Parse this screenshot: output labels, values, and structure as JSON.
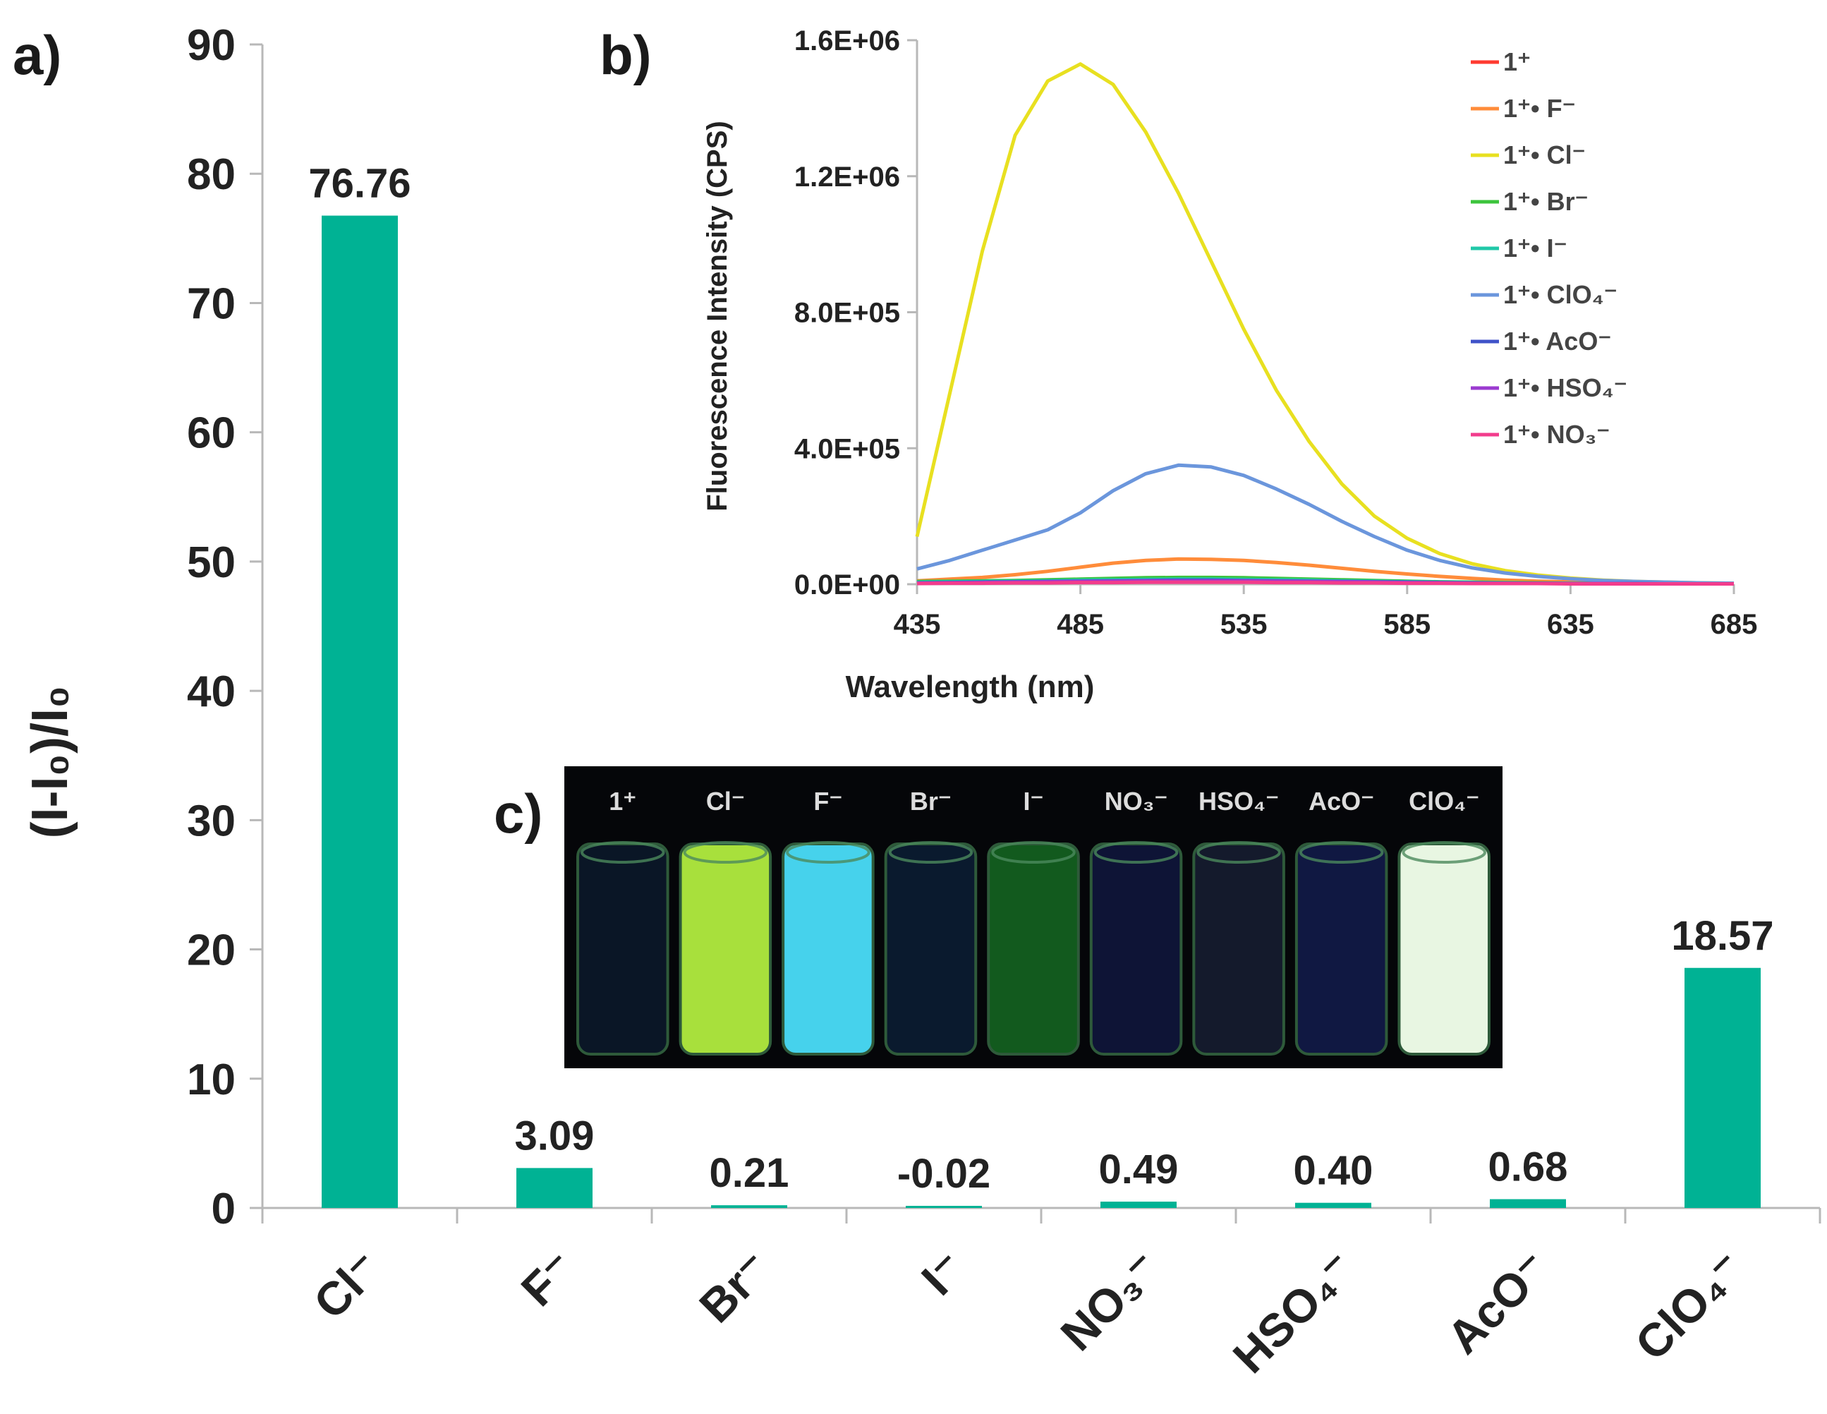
{
  "panels": {
    "a": "a)",
    "b": "b)",
    "c": "c)"
  },
  "chart_data": [
    {
      "panel": "a",
      "type": "bar",
      "categories": [
        "Cl⁻",
        "F⁻",
        "Br⁻",
        "I⁻",
        "NO₃⁻",
        "HSO₄⁻",
        "AcO⁻",
        "ClO₄⁻"
      ],
      "values": [
        76.76,
        3.09,
        0.21,
        -0.02,
        0.49,
        0.4,
        0.68,
        18.57
      ],
      "value_labels": [
        "76.76",
        "3.09",
        "0.21",
        "-0.02",
        "0.49",
        "0.40",
        "0.68",
        "18.57"
      ],
      "ylabel": "(I-I₀)/I₀",
      "xlabel": "",
      "title": "",
      "ylim": [
        0,
        90
      ],
      "yticks": [
        0,
        10,
        20,
        30,
        40,
        50,
        60,
        70,
        80,
        90
      ],
      "bar_color": "#00b294",
      "grid": false
    },
    {
      "panel": "b",
      "type": "line",
      "title": "",
      "xlabel": "Wavelength (nm)",
      "ylabel": "Fluorescence Intensity (CPS)",
      "xlim": [
        435,
        685
      ],
      "ylim": [
        0,
        1600000
      ],
      "xticks": [
        435,
        485,
        535,
        585,
        635,
        685
      ],
      "yticks": [
        0,
        400000,
        800000,
        1200000,
        1600000
      ],
      "ytick_labels": [
        "0.0E+00",
        "4.0E+05",
        "8.0E+05",
        "1.2E+06",
        "1.6E+06"
      ],
      "legend_position": "right",
      "grid": false,
      "x": [
        435,
        445,
        455,
        465,
        475,
        485,
        495,
        505,
        515,
        525,
        535,
        545,
        555,
        565,
        575,
        585,
        595,
        605,
        615,
        625,
        635,
        645,
        655,
        665,
        675,
        685
      ],
      "series": [
        {
          "name": "1⁺",
          "color": "#ff3b30",
          "values": [
            5000,
            5000,
            6000,
            6000,
            7000,
            7000,
            8000,
            8000,
            8000,
            8000,
            8000,
            7000,
            7000,
            6000,
            6000,
            5000,
            5000,
            4000,
            4000,
            3000,
            3000,
            2000,
            2000,
            2000,
            1000,
            1000
          ]
        },
        {
          "name": "1⁺• F⁻",
          "color": "#ff8c3a",
          "values": [
            10000,
            15000,
            20000,
            28000,
            38000,
            50000,
            62000,
            70000,
            74000,
            73000,
            70000,
            64000,
            56000,
            47000,
            38000,
            30000,
            23000,
            17000,
            12000,
            9000,
            7000,
            5000,
            4000,
            3000,
            2500,
            2000
          ]
        },
        {
          "name": "1⁺• Cl⁻",
          "color": "#e8e020",
          "values": [
            140000,
            560000,
            980000,
            1320000,
            1480000,
            1530000,
            1470000,
            1330000,
            1150000,
            950000,
            750000,
            570000,
            420000,
            295000,
            200000,
            135000,
            90000,
            60000,
            40000,
            27000,
            18000,
            12000,
            8000,
            6000,
            4000,
            3000
          ]
        },
        {
          "name": "1⁺• Br⁻",
          "color": "#3cc43c",
          "values": [
            8000,
            9000,
            10000,
            11000,
            13000,
            15000,
            17000,
            19000,
            20000,
            20000,
            19000,
            17000,
            15000,
            13000,
            11000,
            9000,
            7000,
            6000,
            5000,
            4000,
            3000,
            3000,
            2000,
            2000,
            2000,
            1000
          ]
        },
        {
          "name": "1⁺• I⁻",
          "color": "#20c8a8",
          "values": [
            6000,
            7000,
            8000,
            9000,
            10000,
            12000,
            13000,
            14000,
            15000,
            15000,
            14000,
            13000,
            12000,
            10000,
            9000,
            7000,
            6000,
            5000,
            4000,
            3000,
            3000,
            2000,
            2000,
            1000,
            1000,
            1000
          ]
        },
        {
          "name": "1⁺• ClO₄⁻",
          "color": "#6b96dc",
          "values": [
            45000,
            70000,
            100000,
            130000,
            160000,
            210000,
            275000,
            325000,
            350000,
            345000,
            320000,
            280000,
            235000,
            185000,
            140000,
            100000,
            70000,
            48000,
            33000,
            23000,
            16000,
            11000,
            8000,
            6000,
            4000,
            3000
          ]
        },
        {
          "name": "1⁺• AcO⁻",
          "color": "#3f52c8",
          "values": [
            4000,
            5000,
            6000,
            7000,
            8000,
            9000,
            10000,
            11000,
            12000,
            12000,
            11000,
            10000,
            9000,
            8000,
            7000,
            6000,
            5000,
            4000,
            3000,
            3000,
            2000,
            2000,
            2000,
            1000,
            1000,
            1000
          ]
        },
        {
          "name": "1⁺• HSO₄⁻",
          "color": "#9b3bd0",
          "values": [
            3000,
            4000,
            5000,
            6000,
            7000,
            8000,
            9000,
            10000,
            10000,
            10000,
            10000,
            9000,
            8000,
            7000,
            6000,
            5000,
            4000,
            3000,
            3000,
            2000,
            2000,
            2000,
            1000,
            1000,
            1000,
            1000
          ]
        },
        {
          "name": "1⁺• NO₃⁻",
          "color": "#f23c8c",
          "values": [
            2000,
            3000,
            3000,
            4000,
            4000,
            5000,
            5000,
            6000,
            6000,
            6000,
            6000,
            5000,
            5000,
            4000,
            4000,
            3000,
            3000,
            2000,
            2000,
            2000,
            1000,
            1000,
            1000,
            1000,
            1000,
            1000
          ]
        }
      ]
    }
  ],
  "photo": {
    "labels": [
      "1⁺",
      "Cl⁻",
      "F⁻",
      "Br⁻",
      "I⁻",
      "NO₃⁻",
      "HSO₄⁻",
      "AcO⁻",
      "ClO₄⁻"
    ],
    "vial_colors": [
      "#0a1626",
      "#a8e03c",
      "#46d2ec",
      "#0a1a2e",
      "#125a1e",
      "#0e1436",
      "#141a2c",
      "#101842",
      "#e8f6e2"
    ]
  }
}
